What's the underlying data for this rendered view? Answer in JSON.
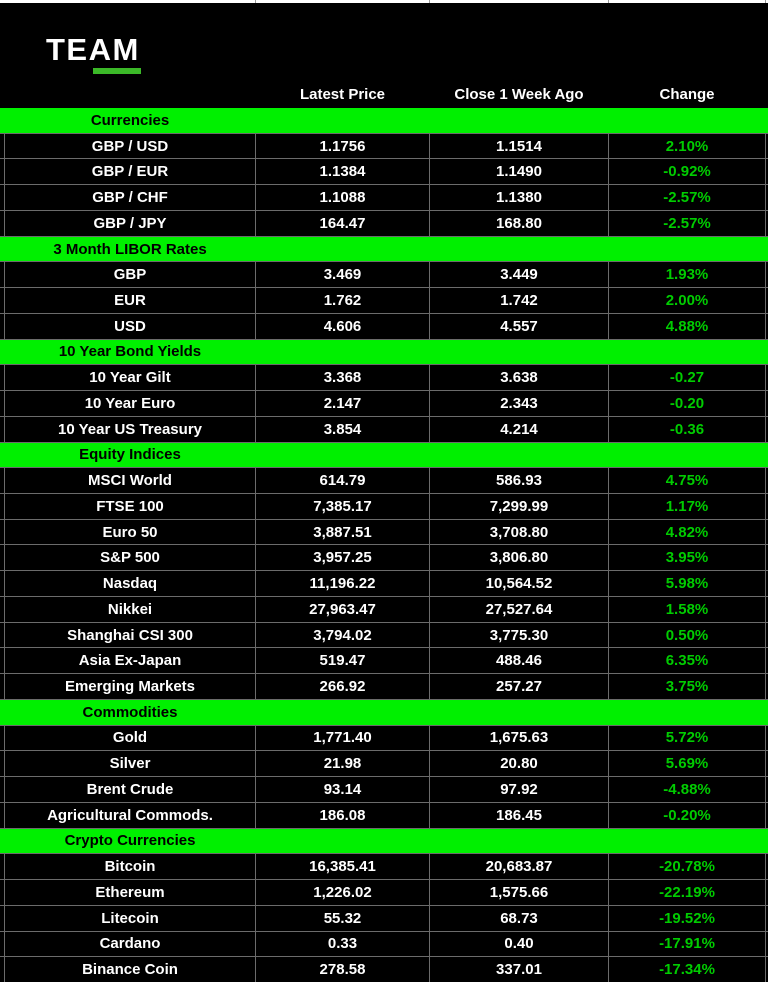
{
  "logo": {
    "text": "TEAM"
  },
  "columns": {
    "latest": "Latest Price",
    "week_ago": "Close 1 Week Ago",
    "change": "Change"
  },
  "colors": {
    "band_green": "#00f000",
    "change_green": "#00cc00",
    "underline_green": "#3bb928",
    "grid_gray": "#6b6b6b",
    "bg_black": "#000000",
    "text_white": "#ffffff"
  },
  "sections": [
    {
      "title": "Currencies",
      "rows": [
        {
          "label": "GBP / USD",
          "latest": "1.1756",
          "week_ago": "1.1514",
          "change": "2.10%"
        },
        {
          "label": "GBP / EUR",
          "latest": "1.1384",
          "week_ago": "1.1490",
          "change": "-0.92%"
        },
        {
          "label": "GBP / CHF",
          "latest": "1.1088",
          "week_ago": "1.1380",
          "change": "-2.57%"
        },
        {
          "label": "GBP / JPY",
          "latest": "164.47",
          "week_ago": "168.80",
          "change": "-2.57%"
        }
      ]
    },
    {
      "title": "3 Month LIBOR Rates",
      "rows": [
        {
          "label": "GBP",
          "latest": "3.469",
          "week_ago": "3.449",
          "change": "1.93%"
        },
        {
          "label": "EUR",
          "latest": "1.762",
          "week_ago": "1.742",
          "change": "2.00%"
        },
        {
          "label": "USD",
          "latest": "4.606",
          "week_ago": "4.557",
          "change": "4.88%"
        }
      ]
    },
    {
      "title": "10 Year Bond Yields",
      "rows": [
        {
          "label": "10 Year Gilt",
          "latest": "3.368",
          "week_ago": "3.638",
          "change": "-0.27"
        },
        {
          "label": "10 Year Euro",
          "latest": "2.147",
          "week_ago": "2.343",
          "change": "-0.20"
        },
        {
          "label": "10 Year US Treasury",
          "latest": "3.854",
          "week_ago": "4.214",
          "change": "-0.36"
        }
      ]
    },
    {
      "title": "Equity Indices",
      "rows": [
        {
          "label": "MSCI World",
          "latest": "614.79",
          "week_ago": "586.93",
          "change": "4.75%"
        },
        {
          "label": "FTSE 100",
          "latest": "7,385.17",
          "week_ago": "7,299.99",
          "change": "1.17%"
        },
        {
          "label": "Euro 50",
          "latest": "3,887.51",
          "week_ago": "3,708.80",
          "change": "4.82%"
        },
        {
          "label": "S&P 500",
          "latest": "3,957.25",
          "week_ago": "3,806.80",
          "change": "3.95%"
        },
        {
          "label": "Nasdaq",
          "latest": "11,196.22",
          "week_ago": "10,564.52",
          "change": "5.98%"
        },
        {
          "label": "Nikkei",
          "latest": "27,963.47",
          "week_ago": "27,527.64",
          "change": "1.58%"
        },
        {
          "label": "Shanghai CSI 300",
          "latest": "3,794.02",
          "week_ago": "3,775.30",
          "change": "0.50%"
        },
        {
          "label": "Asia Ex-Japan",
          "latest": "519.47",
          "week_ago": "488.46",
          "change": "6.35%"
        },
        {
          "label": "Emerging Markets",
          "latest": "266.92",
          "week_ago": "257.27",
          "change": "3.75%"
        }
      ]
    },
    {
      "title": "Commodities",
      "rows": [
        {
          "label": "Gold",
          "latest": "1,771.40",
          "week_ago": "1,675.63",
          "change": "5.72%"
        },
        {
          "label": "Silver",
          "latest": "21.98",
          "week_ago": "20.80",
          "change": "5.69%"
        },
        {
          "label": "Brent Crude",
          "latest": "93.14",
          "week_ago": "97.92",
          "change": "-4.88%"
        },
        {
          "label": "Agricultural Commods.",
          "latest": "186.08",
          "week_ago": "186.45",
          "change": "-0.20%"
        }
      ]
    },
    {
      "title": "Crypto Currencies",
      "rows": [
        {
          "label": "Bitcoin",
          "latest": "16,385.41",
          "week_ago": "20,683.87",
          "change": "-20.78%"
        },
        {
          "label": "Ethereum",
          "latest": "1,226.02",
          "week_ago": "1,575.66",
          "change": "-22.19%"
        },
        {
          "label": "Litecoin",
          "latest": "55.32",
          "week_ago": "68.73",
          "change": "-19.52%"
        },
        {
          "label": "Cardano",
          "latest": "0.33",
          "week_ago": "0.40",
          "change": "-17.91%"
        },
        {
          "label": "Binance Coin",
          "latest": "278.58",
          "week_ago": "337.01",
          "change": "-17.34%"
        }
      ]
    }
  ]
}
